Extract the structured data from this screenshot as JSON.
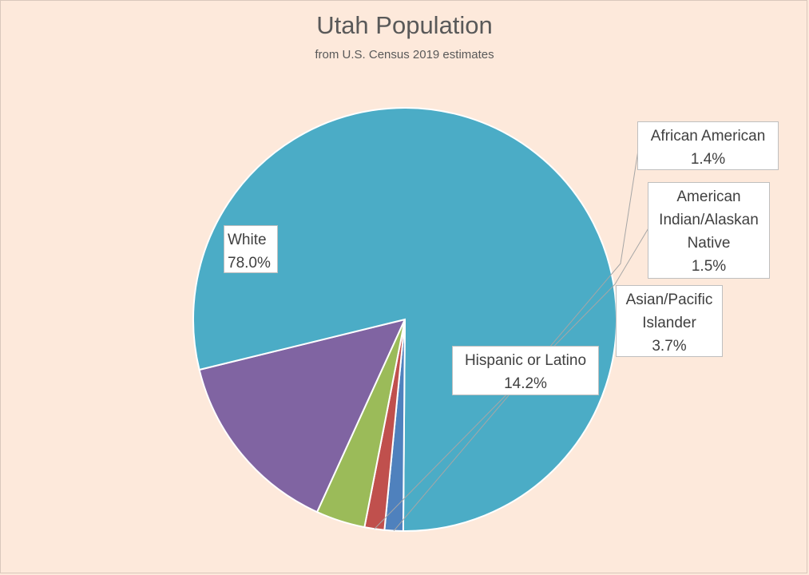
{
  "chart_data": {
    "type": "pie",
    "title": "Utah Population",
    "subtitle": "from U.S. Census 2019 estimates",
    "slices": [
      {
        "label": "White",
        "display_label": "White",
        "value": 78.0,
        "percent_text": "78.0%",
        "color": "#4bacc6"
      },
      {
        "label": "African American",
        "display_label": "African American",
        "value": 1.4,
        "percent_text": "1.4%",
        "color": "#4f81bd"
      },
      {
        "label": "American Indian/Alaskan Native",
        "display_label": "American Indian/Alaskan Native",
        "value": 1.5,
        "percent_text": "1.5%",
        "color": "#c0504d"
      },
      {
        "label": "Asian/Pacific Islander",
        "display_label": "Asian/Pacific Islander",
        "value": 3.7,
        "percent_text": "3.7%",
        "color": "#9bbb59"
      },
      {
        "label": "Hispanic or Latino",
        "display_label": "Hispanic or Latino",
        "value": 14.2,
        "percent_text": "14.2%",
        "color": "#8064a2"
      }
    ]
  },
  "colors": {
    "background": "#fde9db",
    "title_text": "#595959",
    "slice_border": "#ffffff",
    "leader_line": "#a6a6a6"
  }
}
